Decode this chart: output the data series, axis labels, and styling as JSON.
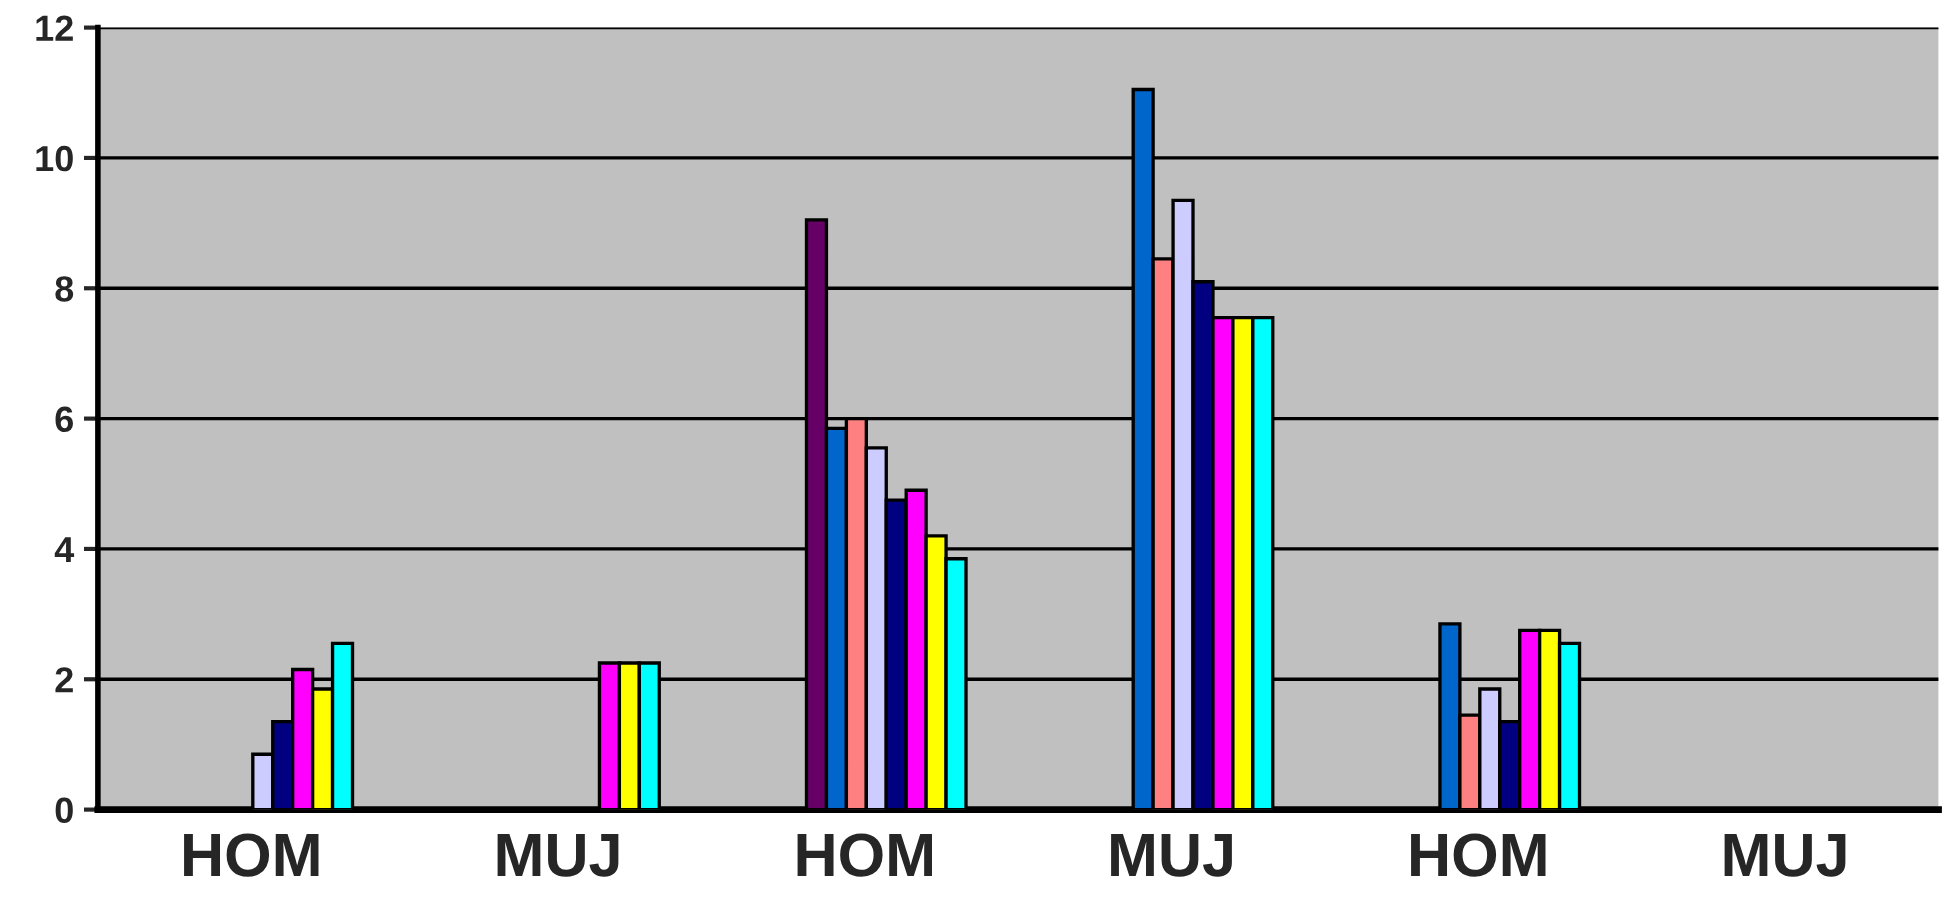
{
  "chart_data": {
    "type": "bar",
    "categories": [
      "HOM",
      "MUJ",
      "HOM",
      "MUJ",
      "HOM",
      "MUJ"
    ],
    "series": [
      {
        "color": "#660066",
        "values": [
          null,
          null,
          9.05,
          null,
          null,
          null
        ]
      },
      {
        "color": "#0066cc",
        "values": [
          null,
          null,
          5.85,
          11.05,
          2.85,
          null
        ]
      },
      {
        "color": "#ff8080",
        "values": [
          null,
          null,
          6.0,
          8.45,
          1.45,
          null
        ]
      },
      {
        "color": "#ccccff",
        "values": [
          0.85,
          null,
          5.55,
          9.35,
          1.85,
          null
        ]
      },
      {
        "color": "#000080",
        "values": [
          1.35,
          null,
          4.75,
          8.1,
          1.35,
          null
        ]
      },
      {
        "color": "#ff00ff",
        "values": [
          2.15,
          2.25,
          4.9,
          7.55,
          2.75,
          null
        ]
      },
      {
        "color": "#ffff00",
        "values": [
          1.85,
          2.25,
          4.2,
          7.55,
          2.75,
          null
        ]
      },
      {
        "color": "#00ffff",
        "values": [
          2.55,
          2.25,
          3.85,
          7.55,
          2.55,
          null
        ]
      }
    ],
    "ylim": [
      0,
      12
    ],
    "yticks": [
      0,
      2,
      4,
      6,
      8,
      10,
      12
    ],
    "grid": "y",
    "legend": false
  }
}
